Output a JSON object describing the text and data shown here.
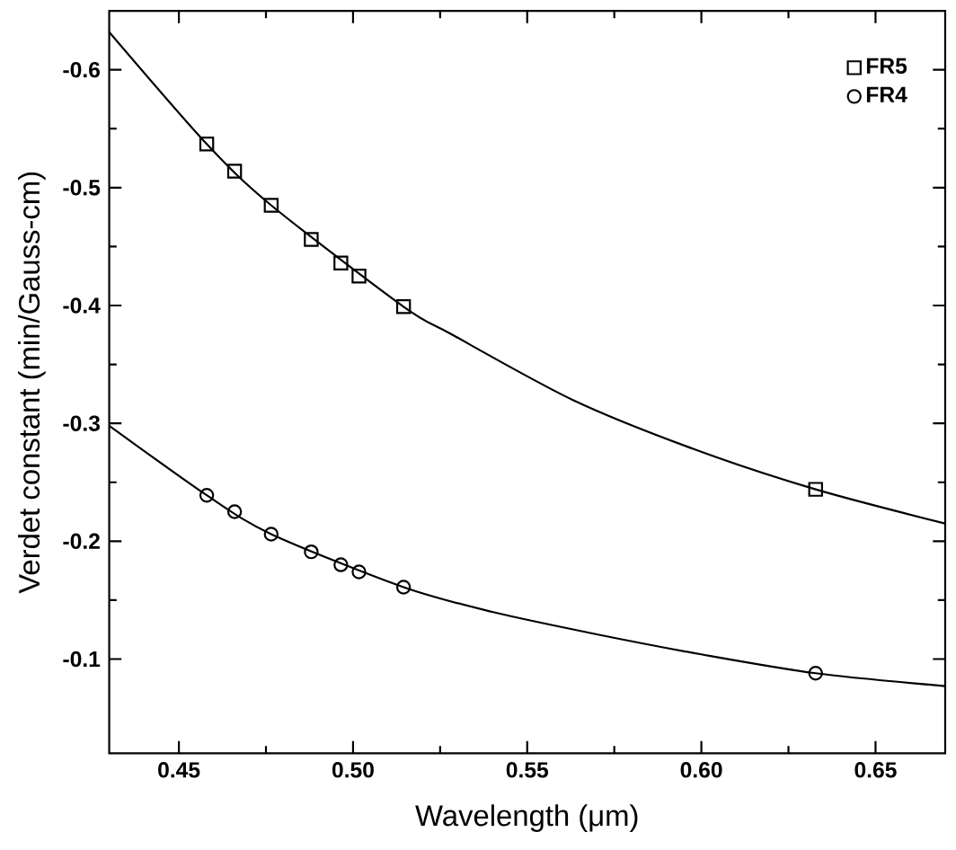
{
  "chart_data": {
    "type": "scatter",
    "xlabel": "Wavelength (μm)",
    "ylabel": "Verdet constant (min/Gauss-cm)",
    "xlim": [
      0.43,
      0.67
    ],
    "ylim": [
      -0.02,
      -0.65
    ],
    "xticks": [
      0.45,
      {
        "value": 0.5,
        "label": "0.50"
      },
      0.55,
      {
        "value": 0.6,
        "label": "0.60"
      },
      0.65
    ],
    "yticks": [
      -0.1,
      -0.2,
      -0.3,
      -0.4,
      -0.5,
      -0.6
    ],
    "legend": "top right",
    "grid": false,
    "series": [
      {
        "name": "FR5",
        "color": "#000000",
        "marker": "square",
        "x": [
          0.458,
          0.466,
          0.4765,
          0.488,
          0.4965,
          0.5017,
          0.5145,
          0.6328
        ],
        "values": [
          -0.537,
          -0.514,
          -0.485,
          -0.456,
          -0.436,
          -0.425,
          -0.399,
          -0.244
        ]
      },
      {
        "name": "FR4",
        "color": "#000000",
        "marker": "circle",
        "x": [
          0.458,
          0.466,
          0.4765,
          0.488,
          0.4965,
          0.5017,
          0.5145,
          0.6328
        ],
        "values": [
          -0.239,
          -0.225,
          -0.206,
          -0.191,
          -0.18,
          -0.174,
          -0.161,
          -0.088
        ]
      },
      {
        "type": "line",
        "color": "#000000",
        "marker": "none",
        "x": [
          0.43,
          0.458,
          0.4765,
          0.5145,
          0.528,
          0.563,
          0.598,
          0.6328,
          0.67
        ],
        "values": [
          -0.632,
          -0.537,
          -0.485,
          -0.399,
          -0.376,
          -0.32,
          -0.278,
          -0.244,
          -0.215
        ]
      },
      {
        "type": "line",
        "color": "#000000",
        "marker": "none",
        "x": [
          0.43,
          0.458,
          0.4765,
          0.5145,
          0.54,
          0.57,
          0.6,
          0.6328,
          0.67
        ],
        "values": [
          -0.298,
          -0.239,
          -0.206,
          -0.161,
          -0.14,
          -0.121,
          -0.104,
          -0.088,
          -0.077
        ]
      }
    ]
  }
}
